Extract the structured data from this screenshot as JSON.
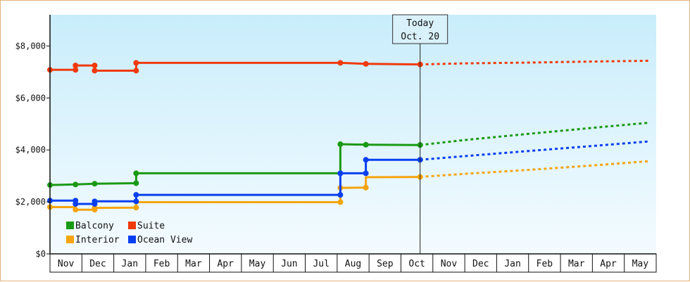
{
  "chart_data": {
    "type": "line",
    "title": "",
    "xlabel": "",
    "ylabel": "",
    "ylim": [
      0,
      9200
    ],
    "yticks": [
      {
        "value": 0,
        "label": "$0"
      },
      {
        "value": 2000,
        "label": "$2,000"
      },
      {
        "value": 4000,
        "label": "$4,000"
      },
      {
        "value": 6000,
        "label": "$6,000"
      },
      {
        "value": 8000,
        "label": "$8,000"
      }
    ],
    "categories": [
      "Nov",
      "Dec",
      "Jan",
      "Feb",
      "Mar",
      "Apr",
      "May",
      "Jun",
      "Jul",
      "Aug",
      "Sep",
      "Oct",
      "Nov",
      "Dec",
      "Jan",
      "Feb",
      "Mar",
      "Apr",
      "May"
    ],
    "xlim": [
      0,
      19
    ],
    "today": {
      "x": 11.6,
      "line1": "Today",
      "line2": "Oct. 20"
    },
    "background": {
      "top": "#c9edfb",
      "bottom": "#f4fbff"
    },
    "legend": {
      "position": "bottom-left",
      "columns": 2
    },
    "series": [
      {
        "name": "Balcony",
        "color": "#1a9a14",
        "points": [
          [
            0,
            2650
          ],
          [
            0.8,
            2670
          ],
          [
            1.4,
            2700
          ],
          [
            2.7,
            2720
          ],
          [
            2.7,
            3100
          ],
          [
            9.1,
            3100
          ],
          [
            9.1,
            4220
          ],
          [
            9.9,
            4200
          ],
          [
            11.6,
            4190
          ]
        ],
        "markers": [
          0,
          1,
          2,
          3,
          4,
          5,
          6,
          7,
          8
        ],
        "forecast": [
          [
            11.6,
            4190
          ],
          [
            13.0,
            4380
          ],
          [
            15.0,
            4620
          ],
          [
            17.0,
            4850
          ],
          [
            18.8,
            5050
          ]
        ]
      },
      {
        "name": "Suite",
        "color": "#f03a0c",
        "points": [
          [
            0,
            7080
          ],
          [
            0.8,
            7080
          ],
          [
            0.8,
            7250
          ],
          [
            1.4,
            7250
          ],
          [
            1.4,
            7050
          ],
          [
            2.7,
            7050
          ],
          [
            2.7,
            7350
          ],
          [
            9.1,
            7350
          ],
          [
            9.9,
            7310
          ],
          [
            11.6,
            7290
          ]
        ],
        "markers": [
          0,
          1,
          2,
          3,
          4,
          5,
          6,
          7,
          8,
          9
        ],
        "forecast": [
          [
            11.6,
            7290
          ],
          [
            13.0,
            7330
          ],
          [
            15.0,
            7360
          ],
          [
            17.0,
            7400
          ],
          [
            18.8,
            7430
          ]
        ]
      },
      {
        "name": "Interior",
        "color": "#f5a40f",
        "points": [
          [
            0,
            1800
          ],
          [
            0.8,
            1800
          ],
          [
            0.8,
            1700
          ],
          [
            1.4,
            1700
          ],
          [
            1.4,
            1770
          ],
          [
            2.7,
            1780
          ],
          [
            2.7,
            1990
          ],
          [
            9.1,
            1990
          ],
          [
            9.1,
            2540
          ],
          [
            9.9,
            2550
          ],
          [
            9.9,
            2950
          ],
          [
            11.6,
            2960
          ]
        ],
        "markers": [
          0,
          2,
          3,
          4,
          5,
          7,
          8,
          9,
          11
        ],
        "forecast": [
          [
            11.6,
            2960
          ],
          [
            13.0,
            3080
          ],
          [
            15.0,
            3230
          ],
          [
            17.0,
            3400
          ],
          [
            18.8,
            3570
          ]
        ]
      },
      {
        "name": "Ocean View",
        "color": "#0a3ff0",
        "points": [
          [
            0,
            2050
          ],
          [
            0.8,
            2050
          ],
          [
            0.8,
            1920
          ],
          [
            1.4,
            1920
          ],
          [
            1.4,
            2020
          ],
          [
            2.7,
            2020
          ],
          [
            2.7,
            2270
          ],
          [
            9.1,
            2270
          ],
          [
            9.1,
            3100
          ],
          [
            9.9,
            3100
          ],
          [
            9.9,
            3620
          ],
          [
            11.6,
            3620
          ]
        ],
        "markers": [
          0,
          1,
          2,
          3,
          4,
          5,
          6,
          7,
          8,
          9,
          10,
          11
        ],
        "forecast": [
          [
            11.6,
            3620
          ],
          [
            13.0,
            3760
          ],
          [
            15.0,
            3960
          ],
          [
            17.0,
            4150
          ],
          [
            18.8,
            4330
          ]
        ]
      }
    ]
  }
}
